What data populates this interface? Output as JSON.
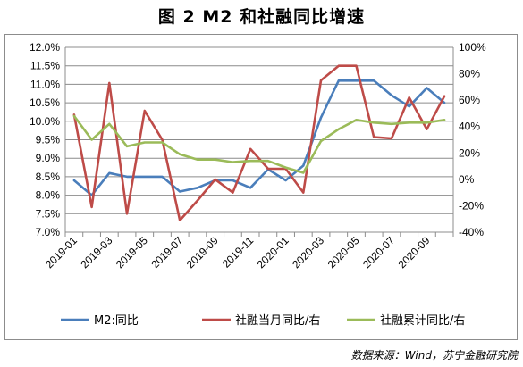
{
  "title": "图 2 M2 和社融同比增速",
  "source": "数据来源：Wind，苏宁金融研究院",
  "chart_data": {
    "type": "line",
    "x": [
      "2019-01",
      "2019-02",
      "2019-03",
      "2019-04",
      "2019-05",
      "2019-06",
      "2019-07",
      "2019-08",
      "2019-09",
      "2019-10",
      "2019-11",
      "2019-12",
      "2020-01",
      "2020-02",
      "2020-03",
      "2020-04",
      "2020-05",
      "2020-06",
      "2020-07",
      "2020-08",
      "2020-09",
      "2020-10"
    ],
    "x_tick_labels": [
      "2019-01",
      "2019-03",
      "2019-05",
      "2019-07",
      "2019-09",
      "2019-11",
      "2020-01",
      "2020-03",
      "2020-05",
      "2020-07",
      "2020-09"
    ],
    "y_left": {
      "ticks": [
        "7.0%",
        "7.5%",
        "8.0%",
        "8.5%",
        "9.0%",
        "9.5%",
        "10.0%",
        "10.5%",
        "11.0%",
        "11.5%",
        "12.0%"
      ],
      "min": 7.0,
      "max": 12.0
    },
    "y_right": {
      "ticks": [
        "-40%",
        "-20%",
        "0%",
        "20%",
        "40%",
        "60%",
        "80%",
        "100%"
      ],
      "min": -40,
      "max": 100
    },
    "grid": true,
    "legend_position": "bottom",
    "series": [
      {
        "name": "M2:同比",
        "axis": "left",
        "color": "#4a7ebb",
        "values": [
          8.4,
          8.0,
          8.6,
          8.5,
          8.5,
          8.5,
          8.1,
          8.2,
          8.4,
          8.4,
          8.2,
          8.7,
          8.4,
          8.8,
          10.1,
          11.1,
          11.1,
          11.1,
          10.7,
          10.4,
          10.9,
          10.5
        ]
      },
      {
        "name": "社融当月同比/右",
        "axis": "right",
        "color": "#be4b48",
        "values": [
          49,
          -21,
          73,
          -26,
          52,
          30,
          -31,
          -16,
          0,
          -10,
          23,
          8,
          8,
          -10,
          75,
          86,
          86,
          32,
          31,
          62,
          38,
          63
        ]
      },
      {
        "name": "社融累计同比/右",
        "axis": "right",
        "color": "#9bbb59",
        "values": [
          48,
          30,
          42,
          25,
          28,
          28,
          19,
          15,
          15,
          13,
          14,
          14,
          9,
          5,
          29,
          38,
          45,
          43,
          42,
          43,
          43,
          45
        ]
      }
    ]
  }
}
